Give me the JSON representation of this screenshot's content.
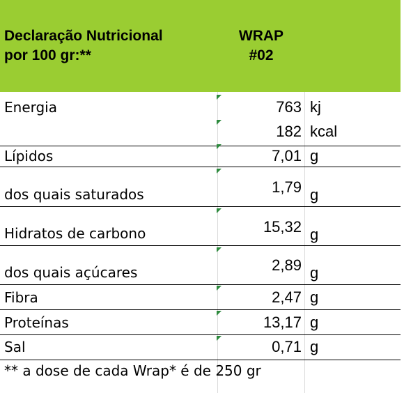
{
  "header": {
    "title_line1": "Declaração Nutricional",
    "title_line2": "por 100 gr:**",
    "product_line1": "WRAP",
    "product_line2": "#02",
    "background_color": "#9acd32"
  },
  "rows": [
    {
      "label": "Energia",
      "values": [
        {
          "value": "763",
          "unit": "kj"
        },
        {
          "value": "182",
          "unit": "kcal"
        }
      ]
    },
    {
      "label": "Lípidos",
      "values": [
        {
          "value": "7,01",
          "unit": "g"
        }
      ]
    },
    {
      "label": "dos quais saturados",
      "values": [
        {
          "value": "1,79",
          "unit": "g"
        }
      ]
    },
    {
      "label": "Hidratos de carbono",
      "values": [
        {
          "value": "15,32",
          "unit": "g"
        }
      ]
    },
    {
      "label": "dos quais açúcares",
      "values": [
        {
          "value": "2,89",
          "unit": "g"
        }
      ]
    },
    {
      "label": "Fibra",
      "values": [
        {
          "value": "2,47",
          "unit": "g"
        }
      ]
    },
    {
      "label": "Proteínas",
      "values": [
        {
          "value": "13,17",
          "unit": "g"
        }
      ]
    },
    {
      "label": "Sal",
      "values": [
        {
          "value": "0,71",
          "unit": "g"
        }
      ]
    }
  ],
  "footnote": "** a dose de cada Wrap* é de 250 gr",
  "marker_color": "#2e8b3e"
}
